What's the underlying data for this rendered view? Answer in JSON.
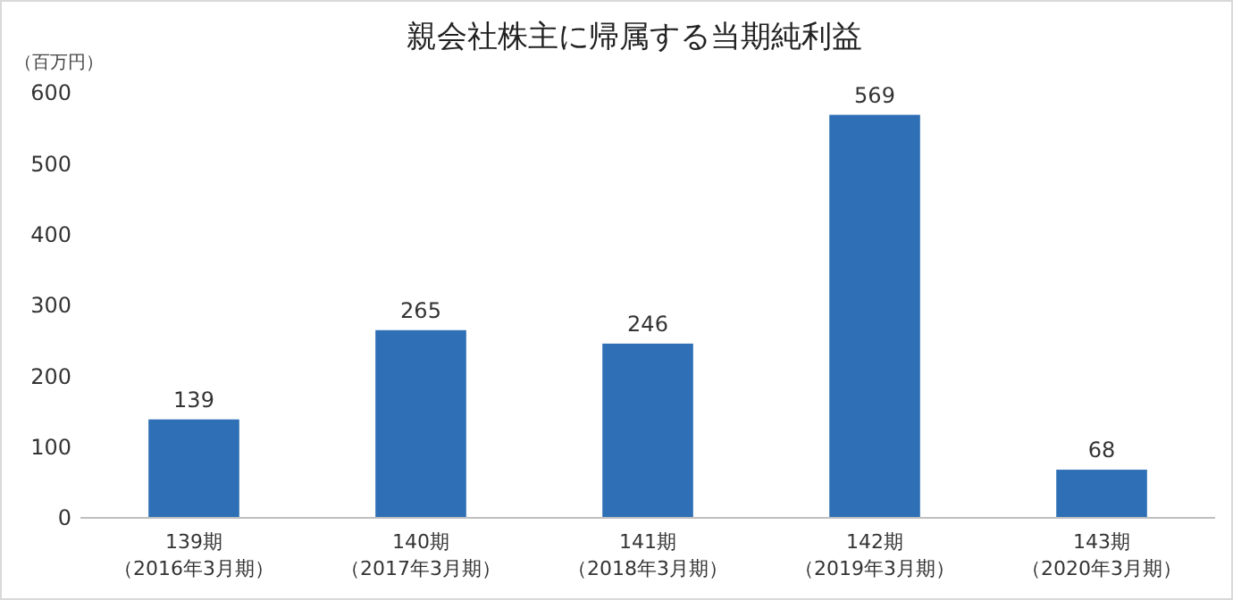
{
  "chart_data": {
    "type": "bar",
    "title": "親会社株主に帰属する当期純利益",
    "ylabel": "（百万円）",
    "categories": [
      "139期（2016年3月期）",
      "140期（2017年3月期）",
      "141期（2018年3月期）",
      "142期（2019年3月期）",
      "143期（2020年3月期）"
    ],
    "values": [
      139,
      265,
      246,
      569,
      68
    ],
    "color": "#2f6fb5",
    "ylim": [
      0,
      600
    ],
    "yticks": [
      0,
      100,
      200,
      300,
      400,
      500,
      600
    ],
    "grid": false,
    "data_labels": true
  }
}
